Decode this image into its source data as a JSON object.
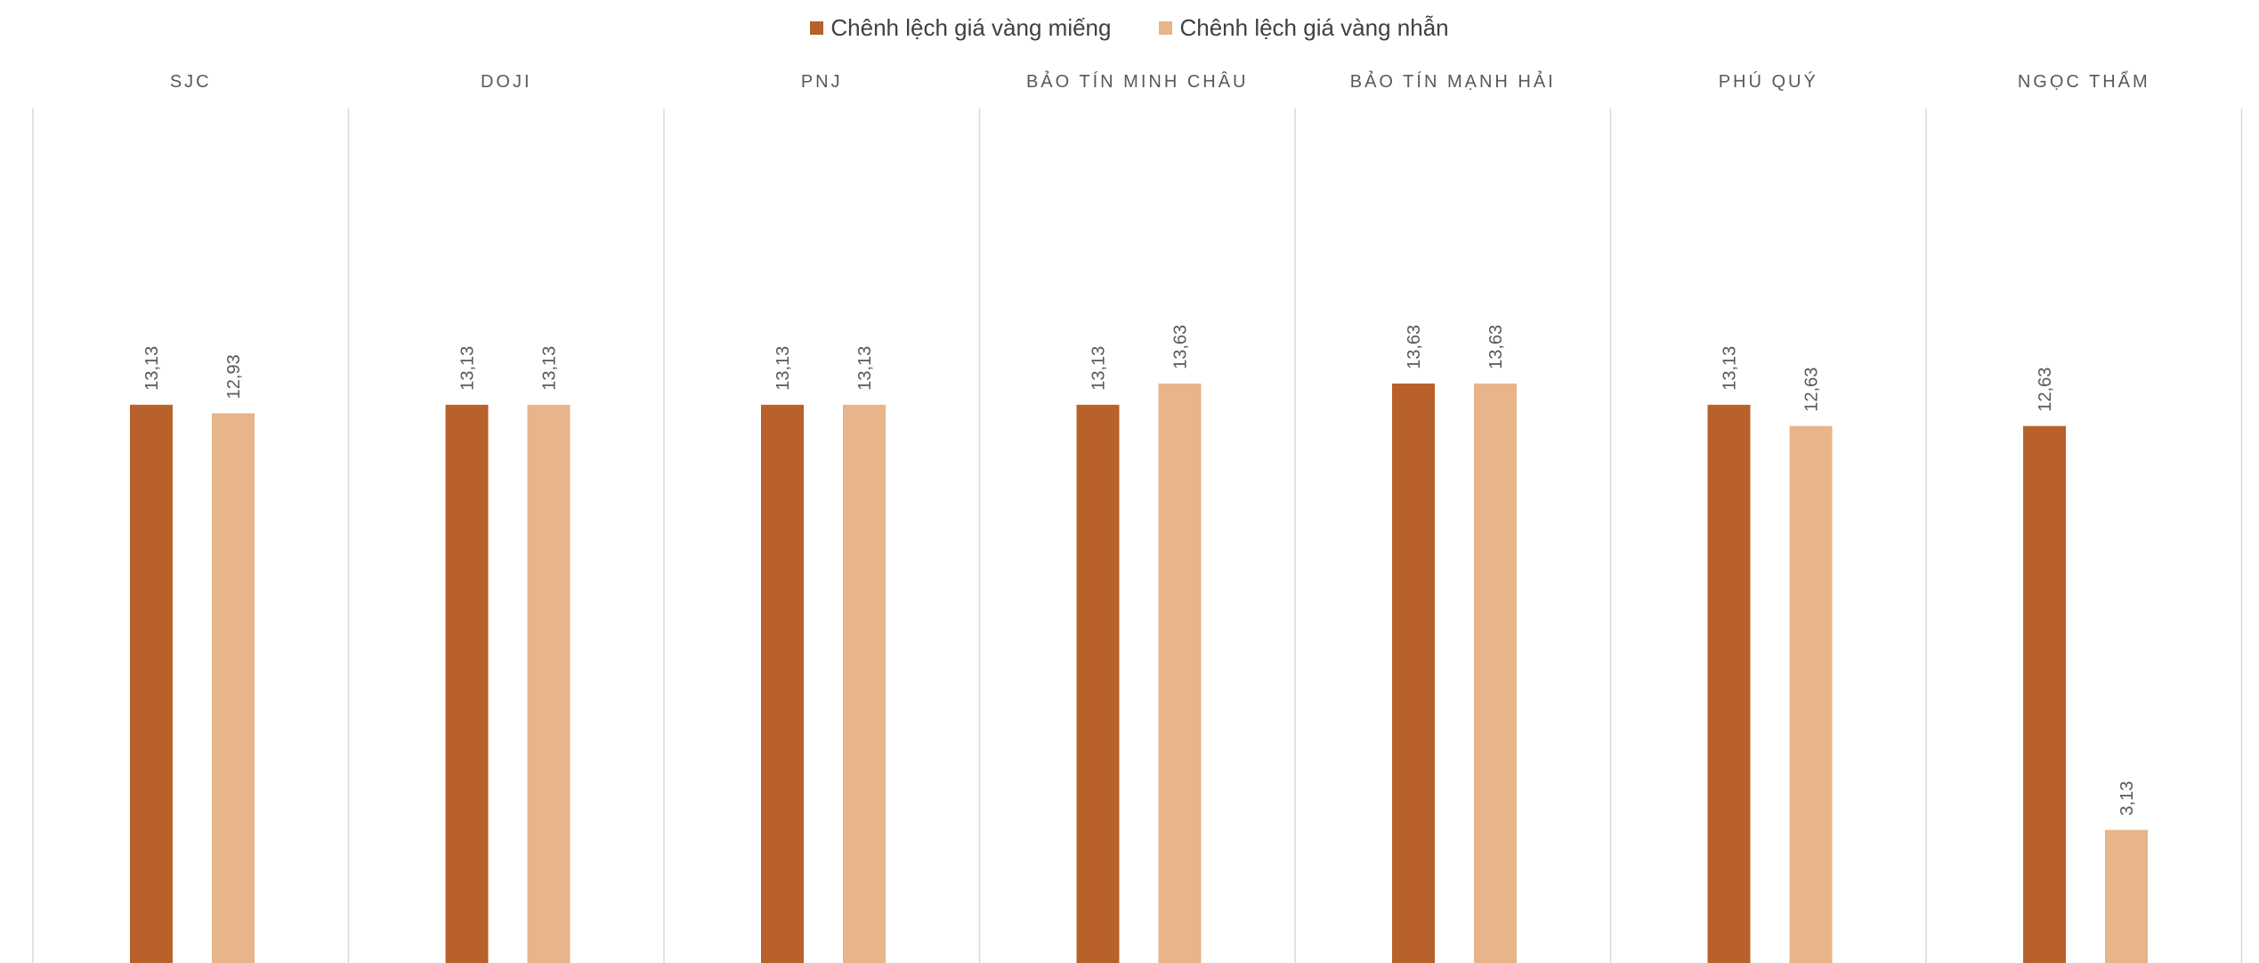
{
  "chart_data": {
    "type": "bar",
    "categories": [
      "SJC",
      "DOJI",
      "PNJ",
      "BẢO TÍN MINH CHÂU",
      "BẢO TÍN MẠNH HẢI",
      "PHÚ QUÝ",
      "NGỌC THẨM"
    ],
    "series": [
      {
        "name": "Chênh lệch giá vàng miếng",
        "color": "#B8612A",
        "values": [
          13.13,
          13.13,
          13.13,
          13.13,
          13.63,
          13.13,
          12.63
        ],
        "labels": [
          "13,13",
          "13,13",
          "13,13",
          "13,13",
          "13,63",
          "13,13",
          "12,63"
        ]
      },
      {
        "name": "Chênh lệch giá vàng nhẫn",
        "color": "#E8B489",
        "values": [
          12.93,
          13.13,
          13.13,
          13.63,
          13.63,
          12.63,
          3.13
        ],
        "labels": [
          "12,93",
          "13,13",
          "13,13",
          "13,63",
          "13,63",
          "12,63",
          "3,13"
        ]
      }
    ],
    "legend_position": "top-center",
    "grid": "vertical separators between categories",
    "label_rotation": "vertical"
  }
}
